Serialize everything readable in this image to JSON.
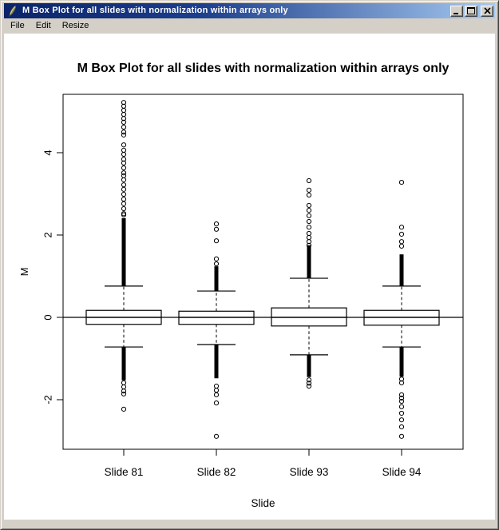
{
  "window": {
    "title": "M Box Plot for all slides with normalization within arrays only",
    "icon": "feather-icon",
    "buttons": {
      "minimize": "minimize",
      "maximize": "maximize",
      "close": "close"
    }
  },
  "menu": {
    "items": [
      {
        "label": "File"
      },
      {
        "label": "Edit"
      },
      {
        "label": "Resize"
      }
    ]
  },
  "chart_data": {
    "type": "boxplot",
    "title": "M Box Plot for all slides with normalization within arrays only",
    "xlabel": "Slide",
    "ylabel": "M",
    "categories": [
      "Slide 81",
      "Slide 82",
      "Slide 93",
      "Slide 94"
    ],
    "yticks": [
      -2,
      0,
      2,
      4
    ],
    "ylim": [
      -3.2,
      5.42
    ],
    "hline": 0,
    "grid": false,
    "boxes": [
      {
        "label": "Slide 81",
        "q1": -0.17,
        "median": 0,
        "q3": 0.17,
        "whisker_low": -0.72,
        "whisker_high": 0.76,
        "outliers_high_dense": [
          0.76,
          2.41
        ],
        "outliers_high": [
          2.49,
          2.52,
          2.64,
          2.76,
          2.87,
          2.99,
          3.11,
          3.22,
          3.34,
          3.44,
          3.51,
          3.63,
          3.75,
          3.84,
          3.96,
          4.06,
          4.19,
          4.43,
          4.5,
          4.62,
          4.74,
          4.83,
          4.93,
          5.03,
          5.13,
          5.22
        ],
        "outliers_low_dense": [
          -1.53,
          -0.72
        ],
        "outliers_low": [
          -1.59,
          -1.69,
          -1.79,
          -1.86,
          -2.23
        ]
      },
      {
        "label": "Slide 82",
        "q1": -0.17,
        "median": 0,
        "q3": 0.15,
        "whisker_low": -0.66,
        "whisker_high": 0.64,
        "outliers_high_dense": [
          0.64,
          1.24
        ],
        "outliers_high": [
          1.3,
          1.42,
          1.86,
          2.14,
          2.27
        ],
        "outliers_low_dense": [
          -1.48,
          -0.66
        ],
        "outliers_low": [
          -1.67,
          -1.77,
          -1.88,
          -2.08,
          -2.89
        ]
      },
      {
        "label": "Slide 93",
        "q1": -0.21,
        "median": 0,
        "q3": 0.23,
        "whisker_low": -0.91,
        "whisker_high": 0.95,
        "outliers_high_dense": [
          0.95,
          1.75
        ],
        "outliers_high": [
          1.75,
          1.84,
          1.94,
          2.04,
          2.19,
          2.33,
          2.47,
          2.6,
          2.72,
          2.97,
          3.09,
          3.32
        ],
        "outliers_low_dense": [
          -1.45,
          -0.91
        ],
        "outliers_low": [
          -1.52,
          -1.6,
          -1.67
        ]
      },
      {
        "label": "Slide 94",
        "q1": -0.19,
        "median": 0,
        "q3": 0.17,
        "whisker_low": -0.72,
        "whisker_high": 0.76,
        "outliers_high_dense": [
          0.76,
          1.53
        ],
        "outliers_high": [
          1.73,
          1.84,
          2.02,
          2.19,
          3.28
        ],
        "outliers_low_dense": [
          -1.44,
          -0.72
        ],
        "outliers_low": [
          -1.5,
          -1.59,
          -1.88,
          -1.96,
          -2.04,
          -2.17,
          -2.33,
          -2.49,
          -2.66,
          -2.89
        ]
      }
    ]
  },
  "colors": {
    "titlebar_left": "#0A246A",
    "titlebar_right": "#A6CAF0",
    "chrome": "#D4D0C8",
    "plot_fg": "#000000",
    "plot_bg": "#ffffff"
  }
}
